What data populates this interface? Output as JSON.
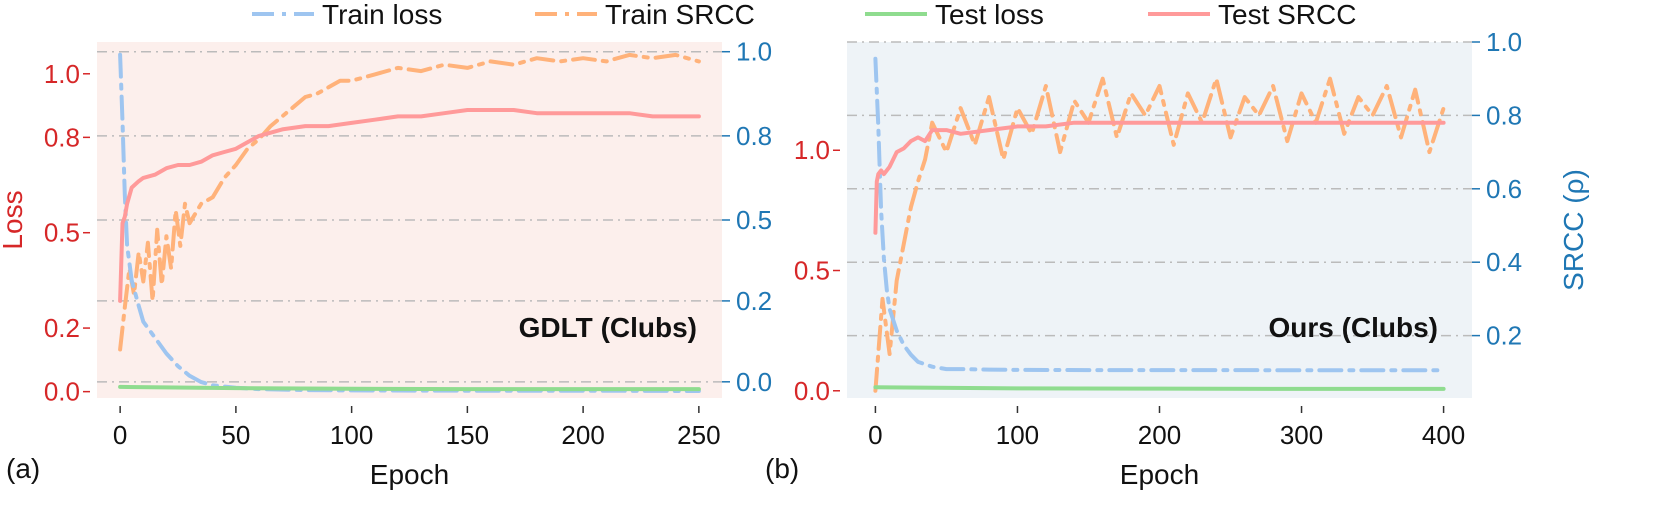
{
  "colors": {
    "train_loss": "#9ec5f0",
    "train_srcc": "#ffb27a",
    "test_loss": "#8fdc8f",
    "test_srcc": "#ff9a9a",
    "loss_axis": "#d62728",
    "srcc_axis": "#1f77b4",
    "panel_a_bg": "#fcefec",
    "panel_b_bg": "#eef3f7",
    "grid": "#bbbbbb"
  },
  "legend": [
    {
      "label": "Train loss",
      "style": "dashdot",
      "color_key": "train_loss"
    },
    {
      "label": "Train SRCC",
      "style": "dashdot",
      "color_key": "train_srcc"
    },
    {
      "label": "Test loss",
      "style": "solid",
      "color_key": "test_loss"
    },
    {
      "label": "Test SRCC",
      "style": "solid",
      "color_key": "test_srcc"
    }
  ],
  "chart_data": [
    {
      "type": "line",
      "panel_label": "(a)",
      "annotation": "GDLT (Clubs)",
      "xlabel": "Epoch",
      "ylabel_left": "Loss",
      "ylabel_right": "",
      "xlim": [
        -10,
        260
      ],
      "xticks": [
        0,
        50,
        100,
        150,
        200,
        250
      ],
      "ylim_left": [
        -0.02,
        1.1
      ],
      "yticks_left": [
        "0.0",
        "0.2",
        "0.5",
        "0.8",
        "1.0"
      ],
      "yticks_left_values": [
        0.0,
        0.2,
        0.5,
        0.8,
        1.0
      ],
      "ylim_right": [
        -0.1,
        1.0
      ],
      "yticks_right": [
        "0.0",
        "0.2",
        "0.5",
        "0.8",
        "1.0"
      ],
      "yticks_right_values": [
        -0.05,
        0.2,
        0.45,
        0.71,
        0.97
      ],
      "series": [
        {
          "name": "Train loss",
          "axis": "left",
          "x": [
            0,
            1,
            2,
            3,
            5,
            8,
            10,
            15,
            20,
            25,
            30,
            35,
            40,
            50,
            60,
            80,
            100,
            150,
            200,
            250
          ],
          "y": [
            1.06,
            0.85,
            0.62,
            0.46,
            0.35,
            0.27,
            0.22,
            0.17,
            0.12,
            0.08,
            0.05,
            0.03,
            0.02,
            0.012,
            0.008,
            0.005,
            0.004,
            0.003,
            0.003,
            0.002
          ]
        },
        {
          "name": "Train SRCC",
          "axis": "right",
          "x": [
            0,
            2,
            4,
            6,
            8,
            10,
            12,
            14,
            16,
            18,
            20,
            22,
            24,
            26,
            28,
            30,
            35,
            40,
            45,
            50,
            55,
            60,
            65,
            70,
            75,
            80,
            85,
            90,
            95,
            100,
            110,
            120,
            130,
            140,
            150,
            160,
            170,
            180,
            190,
            200,
            210,
            220,
            230,
            240,
            245,
            250
          ],
          "y": [
            0.05,
            0.18,
            0.3,
            0.22,
            0.35,
            0.26,
            0.38,
            0.2,
            0.42,
            0.25,
            0.4,
            0.3,
            0.48,
            0.37,
            0.5,
            0.44,
            0.5,
            0.52,
            0.58,
            0.62,
            0.67,
            0.7,
            0.74,
            0.77,
            0.8,
            0.83,
            0.84,
            0.86,
            0.88,
            0.88,
            0.9,
            0.92,
            0.91,
            0.93,
            0.92,
            0.94,
            0.93,
            0.95,
            0.94,
            0.95,
            0.94,
            0.96,
            0.95,
            0.96,
            0.95,
            0.94
          ]
        },
        {
          "name": "Test loss",
          "axis": "left",
          "x": [
            0,
            50,
            100,
            150,
            200,
            250
          ],
          "y": [
            0.015,
            0.011,
            0.009,
            0.008,
            0.008,
            0.008
          ]
        },
        {
          "name": "Test SRCC",
          "axis": "right",
          "x": [
            0,
            1,
            2,
            3,
            5,
            8,
            10,
            15,
            20,
            25,
            30,
            35,
            40,
            45,
            50,
            55,
            60,
            70,
            80,
            90,
            100,
            110,
            120,
            130,
            140,
            150,
            160,
            170,
            180,
            190,
            200,
            210,
            220,
            230,
            240,
            250
          ],
          "y": [
            0.2,
            0.44,
            0.46,
            0.5,
            0.55,
            0.57,
            0.58,
            0.59,
            0.61,
            0.62,
            0.62,
            0.63,
            0.65,
            0.66,
            0.67,
            0.69,
            0.71,
            0.73,
            0.74,
            0.74,
            0.75,
            0.76,
            0.77,
            0.77,
            0.78,
            0.79,
            0.79,
            0.79,
            0.78,
            0.78,
            0.78,
            0.78,
            0.78,
            0.77,
            0.77,
            0.77
          ]
        }
      ]
    },
    {
      "type": "line",
      "panel_label": "(b)",
      "annotation": "Ours (Clubs)",
      "xlabel": "Epoch",
      "ylabel_left": "",
      "ylabel_right": "SRCC (ρ)",
      "xlim": [
        -20,
        420
      ],
      "xticks": [
        0,
        100,
        200,
        300,
        400
      ],
      "ylim_left": [
        -0.03,
        1.45
      ],
      "yticks_left": [
        "0.0",
        "0.5",
        "1.0"
      ],
      "yticks_left_values": [
        0.0,
        0.5,
        1.0
      ],
      "ylim_right": [
        0.03,
        1.0
      ],
      "yticks_right": [
        "0.2",
        "0.4",
        "0.6",
        "0.8",
        "1.0"
      ],
      "yticks_right_values": [
        0.2,
        0.4,
        0.6,
        0.8,
        1.0
      ],
      "series": [
        {
          "name": "Train loss",
          "axis": "left",
          "x": [
            0,
            2,
            4,
            6,
            8,
            10,
            15,
            20,
            25,
            30,
            40,
            50,
            60,
            80,
            100,
            150,
            200,
            250,
            300,
            350,
            400
          ],
          "y": [
            1.38,
            1.1,
            0.75,
            0.55,
            0.42,
            0.34,
            0.25,
            0.19,
            0.15,
            0.12,
            0.1,
            0.09,
            0.09,
            0.088,
            0.087,
            0.086,
            0.086,
            0.086,
            0.085,
            0.085,
            0.085
          ]
        },
        {
          "name": "Train SRCC",
          "axis": "right",
          "x": [
            0,
            5,
            10,
            15,
            20,
            25,
            30,
            35,
            40,
            50,
            60,
            70,
            80,
            90,
            100,
            110,
            120,
            130,
            140,
            150,
            160,
            170,
            180,
            190,
            200,
            210,
            220,
            230,
            240,
            250,
            260,
            270,
            280,
            290,
            300,
            310,
            320,
            330,
            340,
            350,
            360,
            370,
            380,
            390,
            400
          ],
          "y": [
            0.05,
            0.3,
            0.15,
            0.35,
            0.45,
            0.55,
            0.62,
            0.68,
            0.78,
            0.7,
            0.82,
            0.72,
            0.85,
            0.68,
            0.82,
            0.75,
            0.88,
            0.7,
            0.84,
            0.78,
            0.9,
            0.74,
            0.86,
            0.8,
            0.88,
            0.72,
            0.86,
            0.78,
            0.9,
            0.74,
            0.85,
            0.8,
            0.88,
            0.73,
            0.86,
            0.78,
            0.9,
            0.75,
            0.85,
            0.8,
            0.88,
            0.74,
            0.87,
            0.7,
            0.82
          ]
        },
        {
          "name": "Test loss",
          "axis": "left",
          "x": [
            0,
            100,
            200,
            300,
            400
          ],
          "y": [
            0.015,
            0.01,
            0.009,
            0.008,
            0.008
          ]
        },
        {
          "name": "Test SRCC",
          "axis": "right",
          "x": [
            0,
            1,
            2,
            4,
            6,
            10,
            15,
            20,
            25,
            30,
            35,
            40,
            50,
            60,
            80,
            100,
            120,
            140,
            160,
            180,
            200,
            250,
            300,
            350,
            400
          ],
          "y": [
            0.48,
            0.62,
            0.64,
            0.65,
            0.64,
            0.66,
            0.7,
            0.71,
            0.73,
            0.74,
            0.73,
            0.76,
            0.76,
            0.75,
            0.76,
            0.77,
            0.77,
            0.78,
            0.78,
            0.78,
            0.78,
            0.78,
            0.78,
            0.78,
            0.78
          ]
        }
      ]
    }
  ]
}
